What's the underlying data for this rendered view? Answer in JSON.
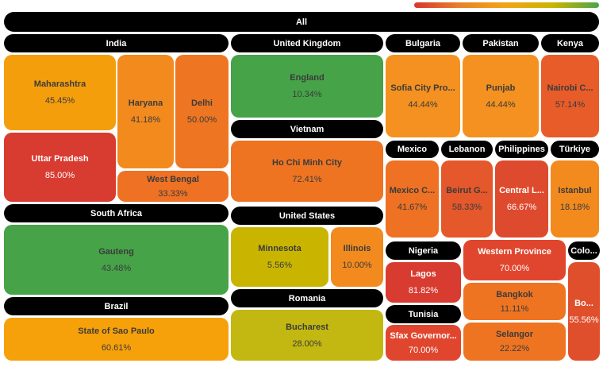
{
  "chart_data": {
    "type": "treemap",
    "root": "All",
    "color_scale": [
      "#d7372f",
      "#e8822a",
      "#f3a416",
      "#c9b500",
      "#4aa547"
    ],
    "groups": [
      {
        "name": "India",
        "children": [
          {
            "name": "Maharashtra",
            "value": "45.45%",
            "color": "#f59e0b"
          },
          {
            "name": "Haryana",
            "value": "41.18%",
            "color": "#f28a1e"
          },
          {
            "name": "Delhi",
            "value": "50.00%",
            "color": "#ee7622"
          },
          {
            "name": "Uttar Pradesh",
            "value": "85.00%",
            "color": "#d83b30"
          },
          {
            "name": "West Bengal",
            "value": "33.33%",
            "color": "#ee7124"
          }
        ]
      },
      {
        "name": "United Kingdom",
        "children": [
          {
            "name": "England",
            "value": "10.34%",
            "color": "#46a348"
          }
        ]
      },
      {
        "name": "Vietnam",
        "children": [
          {
            "name": "Ho Chi Minh City",
            "value": "72.41%",
            "color": "#ef7422"
          }
        ]
      },
      {
        "name": "South Africa",
        "children": [
          {
            "name": "Gauteng",
            "value": "43.48%",
            "color": "#46a348"
          }
        ]
      },
      {
        "name": "United States",
        "children": [
          {
            "name": "Minnesota",
            "value": "5.56%",
            "color": "#c9b500"
          },
          {
            "name": "Illinois",
            "value": "10.00%",
            "color": "#f28a1e"
          }
        ]
      },
      {
        "name": "Romania",
        "children": [
          {
            "name": "Bucharest",
            "value": "28.00%",
            "color": "#c2b811"
          }
        ]
      },
      {
        "name": "Brazil",
        "children": [
          {
            "name": "State of Sao Paulo",
            "value": "60.61%",
            "color": "#f7a10a"
          }
        ]
      },
      {
        "name": "Bulgaria",
        "children": [
          {
            "name": "Sofia City Pro...",
            "value": "44.44%",
            "color": "#f49120"
          }
        ]
      },
      {
        "name": "Pakistan",
        "children": [
          {
            "name": "Punjab",
            "value": "44.44%",
            "color": "#f49120"
          }
        ]
      },
      {
        "name": "Kenya",
        "children": [
          {
            "name": "Nairobi C...",
            "value": "57.14%",
            "color": "#e85c2a"
          }
        ]
      },
      {
        "name": "Mexico",
        "children": [
          {
            "name": "Mexico C...",
            "value": "41.67%",
            "color": "#ee7124"
          }
        ]
      },
      {
        "name": "Lebanon",
        "children": [
          {
            "name": "Beirut G...",
            "value": "58.33%",
            "color": "#e4582c"
          }
        ]
      },
      {
        "name": "Philippines",
        "children": [
          {
            "name": "Central L...",
            "value": "66.67%",
            "color": "#de4a2e"
          }
        ]
      },
      {
        "name": "Türkiye",
        "children": [
          {
            "name": "Istanbul",
            "value": "18.18%",
            "color": "#f28a1e"
          }
        ]
      },
      {
        "name": "Nigeria",
        "children": [
          {
            "name": "Lagos",
            "value": "81.82%",
            "color": "#d83b30"
          }
        ]
      },
      {
        "name": "Tunisia",
        "children": [
          {
            "name": "Sfax Governor...",
            "value": "70.00%",
            "color": "#e0462e"
          }
        ]
      },
      {
        "name": "",
        "children": [
          {
            "name": "Western Province",
            "value": "70.00%",
            "color": "#e0462e"
          },
          {
            "name": "Bangkok",
            "value": "11.11%",
            "color": "#ef7422"
          },
          {
            "name": "Selangor",
            "value": "22.22%",
            "color": "#ef7422"
          }
        ]
      },
      {
        "name": "Colo...",
        "children": [
          {
            "name": "Bo...",
            "value": "55.56%",
            "color": "#e04f2c"
          }
        ]
      }
    ]
  }
}
